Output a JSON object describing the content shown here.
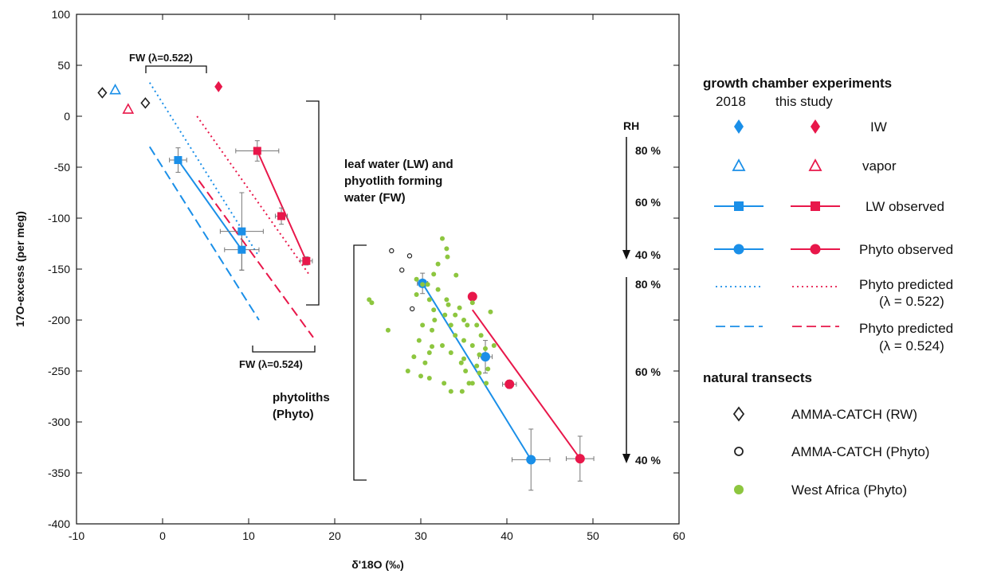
{
  "chart_data": {
    "type": "scatter",
    "xlabel": "δ'18O (‰)",
    "ylabel": "17O-excess (per meg)",
    "xlim": [
      -10,
      60
    ],
    "ylim": [
      -400,
      100
    ],
    "xticks": [
      -10,
      0,
      10,
      20,
      30,
      40,
      50,
      60
    ],
    "yticks": [
      100,
      50,
      0,
      -50,
      -100,
      -150,
      -200,
      -250,
      -300,
      -350,
      -400
    ],
    "colors": {
      "blue": "#1a8fe8",
      "red": "#e8174a",
      "green": "#8dc63f",
      "black": "#222222"
    },
    "series": [
      {
        "name": "IW",
        "color": "#1a8fe8",
        "marker": "diamond-filled",
        "points": []
      },
      {
        "name": "IW",
        "color": "#e8174a",
        "marker": "diamond-filled",
        "points": [
          [
            6.5,
            29
          ]
        ]
      },
      {
        "name": "vapor",
        "color": "#1a8fe8",
        "marker": "triangle-open",
        "points": [
          [
            -5.5,
            26
          ]
        ]
      },
      {
        "name": "vapor",
        "color": "#e8174a",
        "marker": "triangle-open",
        "points": [
          [
            -4,
            7
          ]
        ]
      },
      {
        "name": "LW observed",
        "color": "#1a8fe8",
        "marker": "square",
        "points": [
          [
            1.8,
            -43
          ],
          [
            9.2,
            -113
          ],
          [
            9.2,
            -131
          ]
        ],
        "xerr": [
          1,
          2.5,
          2
        ],
        "yerr": [
          12,
          38,
          20
        ],
        "fit": [
          [
            1.8,
            -43
          ],
          [
            9.2,
            -131
          ]
        ]
      },
      {
        "name": "LW observed",
        "color": "#e8174a",
        "marker": "square",
        "points": [
          [
            11,
            -34
          ],
          [
            13.8,
            -98
          ],
          [
            16.7,
            -142
          ]
        ],
        "xerr": [
          2.5,
          0.7,
          0.7
        ],
        "yerr": [
          10,
          8,
          4
        ],
        "fit": [
          [
            11,
            -34
          ],
          [
            16.7,
            -142
          ]
        ]
      },
      {
        "name": "Phyto observed",
        "color": "#1a8fe8",
        "marker": "circle",
        "points": [
          [
            30.2,
            -164
          ],
          [
            37.5,
            -236
          ],
          [
            42.8,
            -337
          ]
        ],
        "xerr": [
          0.6,
          0.8,
          2.2
        ],
        "yerr": [
          10,
          16,
          30
        ],
        "fit": [
          [
            30.2,
            -164
          ],
          [
            42.8,
            -337
          ]
        ]
      },
      {
        "name": "Phyto observed",
        "color": "#e8174a",
        "marker": "circle",
        "points": [
          [
            36,
            -177
          ],
          [
            40.3,
            -263
          ],
          [
            48.5,
            -336
          ]
        ],
        "xerr": [
          0,
          0.8,
          1.6
        ],
        "yerr": [
          0,
          4,
          22
        ],
        "fit": [
          [
            36,
            -190
          ],
          [
            48.5,
            -336
          ]
        ]
      },
      {
        "name": "Phyto predicted (λ = 0.522)",
        "color": "#1a8fe8",
        "style": "dotted",
        "line": [
          [
            -1.5,
            33
          ],
          [
            11,
            -135
          ]
        ]
      },
      {
        "name": "Phyto predicted (λ = 0.522)",
        "color": "#e8174a",
        "style": "dotted",
        "line": [
          [
            4,
            0
          ],
          [
            17,
            -155
          ]
        ]
      },
      {
        "name": "Phyto predicted (λ = 0.524)",
        "color": "#1a8fe8",
        "style": "dashed",
        "line": [
          [
            -1.5,
            -30
          ],
          [
            11.2,
            -200
          ]
        ]
      },
      {
        "name": "Phyto predicted (λ = 0.524)",
        "color": "#e8174a",
        "style": "dashed",
        "line": [
          [
            4.2,
            -63
          ],
          [
            17.5,
            -217
          ]
        ]
      },
      {
        "name": "AMMA-CATCH (RW)",
        "color": "#222222",
        "marker": "diamond-open",
        "points": [
          [
            -7,
            23
          ],
          [
            -2,
            13
          ]
        ]
      },
      {
        "name": "AMMA-CATCH (Phyto)",
        "color": "#222222",
        "marker": "circle-open",
        "points": [
          [
            26.6,
            -132
          ],
          [
            28.7,
            -137
          ],
          [
            27.8,
            -151
          ],
          [
            29,
            -189
          ]
        ]
      },
      {
        "name": "West Africa (Phyto)",
        "color": "#8dc63f",
        "marker": "circle-filled",
        "points": [
          [
            24,
            -180
          ],
          [
            24.3,
            -183
          ],
          [
            26.2,
            -210
          ],
          [
            28.5,
            -250
          ],
          [
            29.5,
            -160
          ],
          [
            30.2,
            -165
          ],
          [
            29.5,
            -175
          ],
          [
            31,
            -180
          ],
          [
            32.5,
            -120
          ],
          [
            33,
            -130
          ],
          [
            32,
            -145
          ],
          [
            31.5,
            -155
          ],
          [
            30.8,
            -165
          ],
          [
            32,
            -170
          ],
          [
            33,
            -180
          ],
          [
            34.5,
            -188
          ],
          [
            36,
            -183
          ],
          [
            35,
            -200
          ],
          [
            33.5,
            -205
          ],
          [
            34,
            -215
          ],
          [
            35,
            -220
          ],
          [
            36,
            -225
          ],
          [
            32.5,
            -225
          ],
          [
            33.5,
            -232
          ],
          [
            35,
            -238
          ],
          [
            36.5,
            -245
          ],
          [
            35.2,
            -250
          ],
          [
            36.8,
            -252
          ],
          [
            37.8,
            -248
          ],
          [
            36,
            -262
          ],
          [
            34.8,
            -270
          ],
          [
            33.5,
            -270
          ],
          [
            32.7,
            -262
          ],
          [
            31,
            -257
          ],
          [
            30,
            -255
          ],
          [
            30.5,
            -242
          ],
          [
            31,
            -232
          ],
          [
            29.8,
            -220
          ],
          [
            30.2,
            -205
          ],
          [
            31.3,
            -210
          ],
          [
            32.8,
            -195
          ],
          [
            33.2,
            -185
          ],
          [
            31.5,
            -190
          ],
          [
            34,
            -195
          ],
          [
            36.5,
            -205
          ],
          [
            37,
            -215
          ],
          [
            37.5,
            -228
          ],
          [
            38.5,
            -225
          ],
          [
            36.8,
            -234
          ],
          [
            37.6,
            -262
          ],
          [
            38.1,
            -192
          ],
          [
            34.1,
            -156
          ],
          [
            31.6,
            -200
          ],
          [
            34.7,
            -242
          ],
          [
            33.1,
            -138
          ],
          [
            35.4,
            -205
          ],
          [
            31.3,
            -226
          ],
          [
            29.2,
            -236
          ],
          [
            35.6,
            -262
          ]
        ]
      }
    ]
  },
  "annotations": {
    "fw522": "FW (λ=0.522)",
    "fw524": "FW (λ=0.524)",
    "lw_line1": "leaf water (LW) and",
    "lw_line2": "phyotlith forming",
    "lw_line3": "water (FW)",
    "phyto_line1": "phytoliths",
    "phyto_line2": "(Phyto)"
  },
  "rh": {
    "title": "RH",
    "upper": [
      "80 %",
      "60 %",
      "40 %"
    ],
    "lower": [
      "80 %",
      "60 %",
      "40 %"
    ]
  },
  "legend": {
    "header1": "growth chamber experiments",
    "col_2018": "2018",
    "col_study": "this study",
    "items": [
      "IW",
      "vapor",
      "LW observed",
      "Phyto observed",
      "Phyto predicted",
      "(λ = 0.522)",
      "Phyto predicted",
      "(λ = 0.524)"
    ],
    "header2": "natural transects",
    "natural": [
      "AMMA-CATCH (RW)",
      "AMMA-CATCH (Phyto)",
      "West Africa (Phyto)"
    ]
  }
}
